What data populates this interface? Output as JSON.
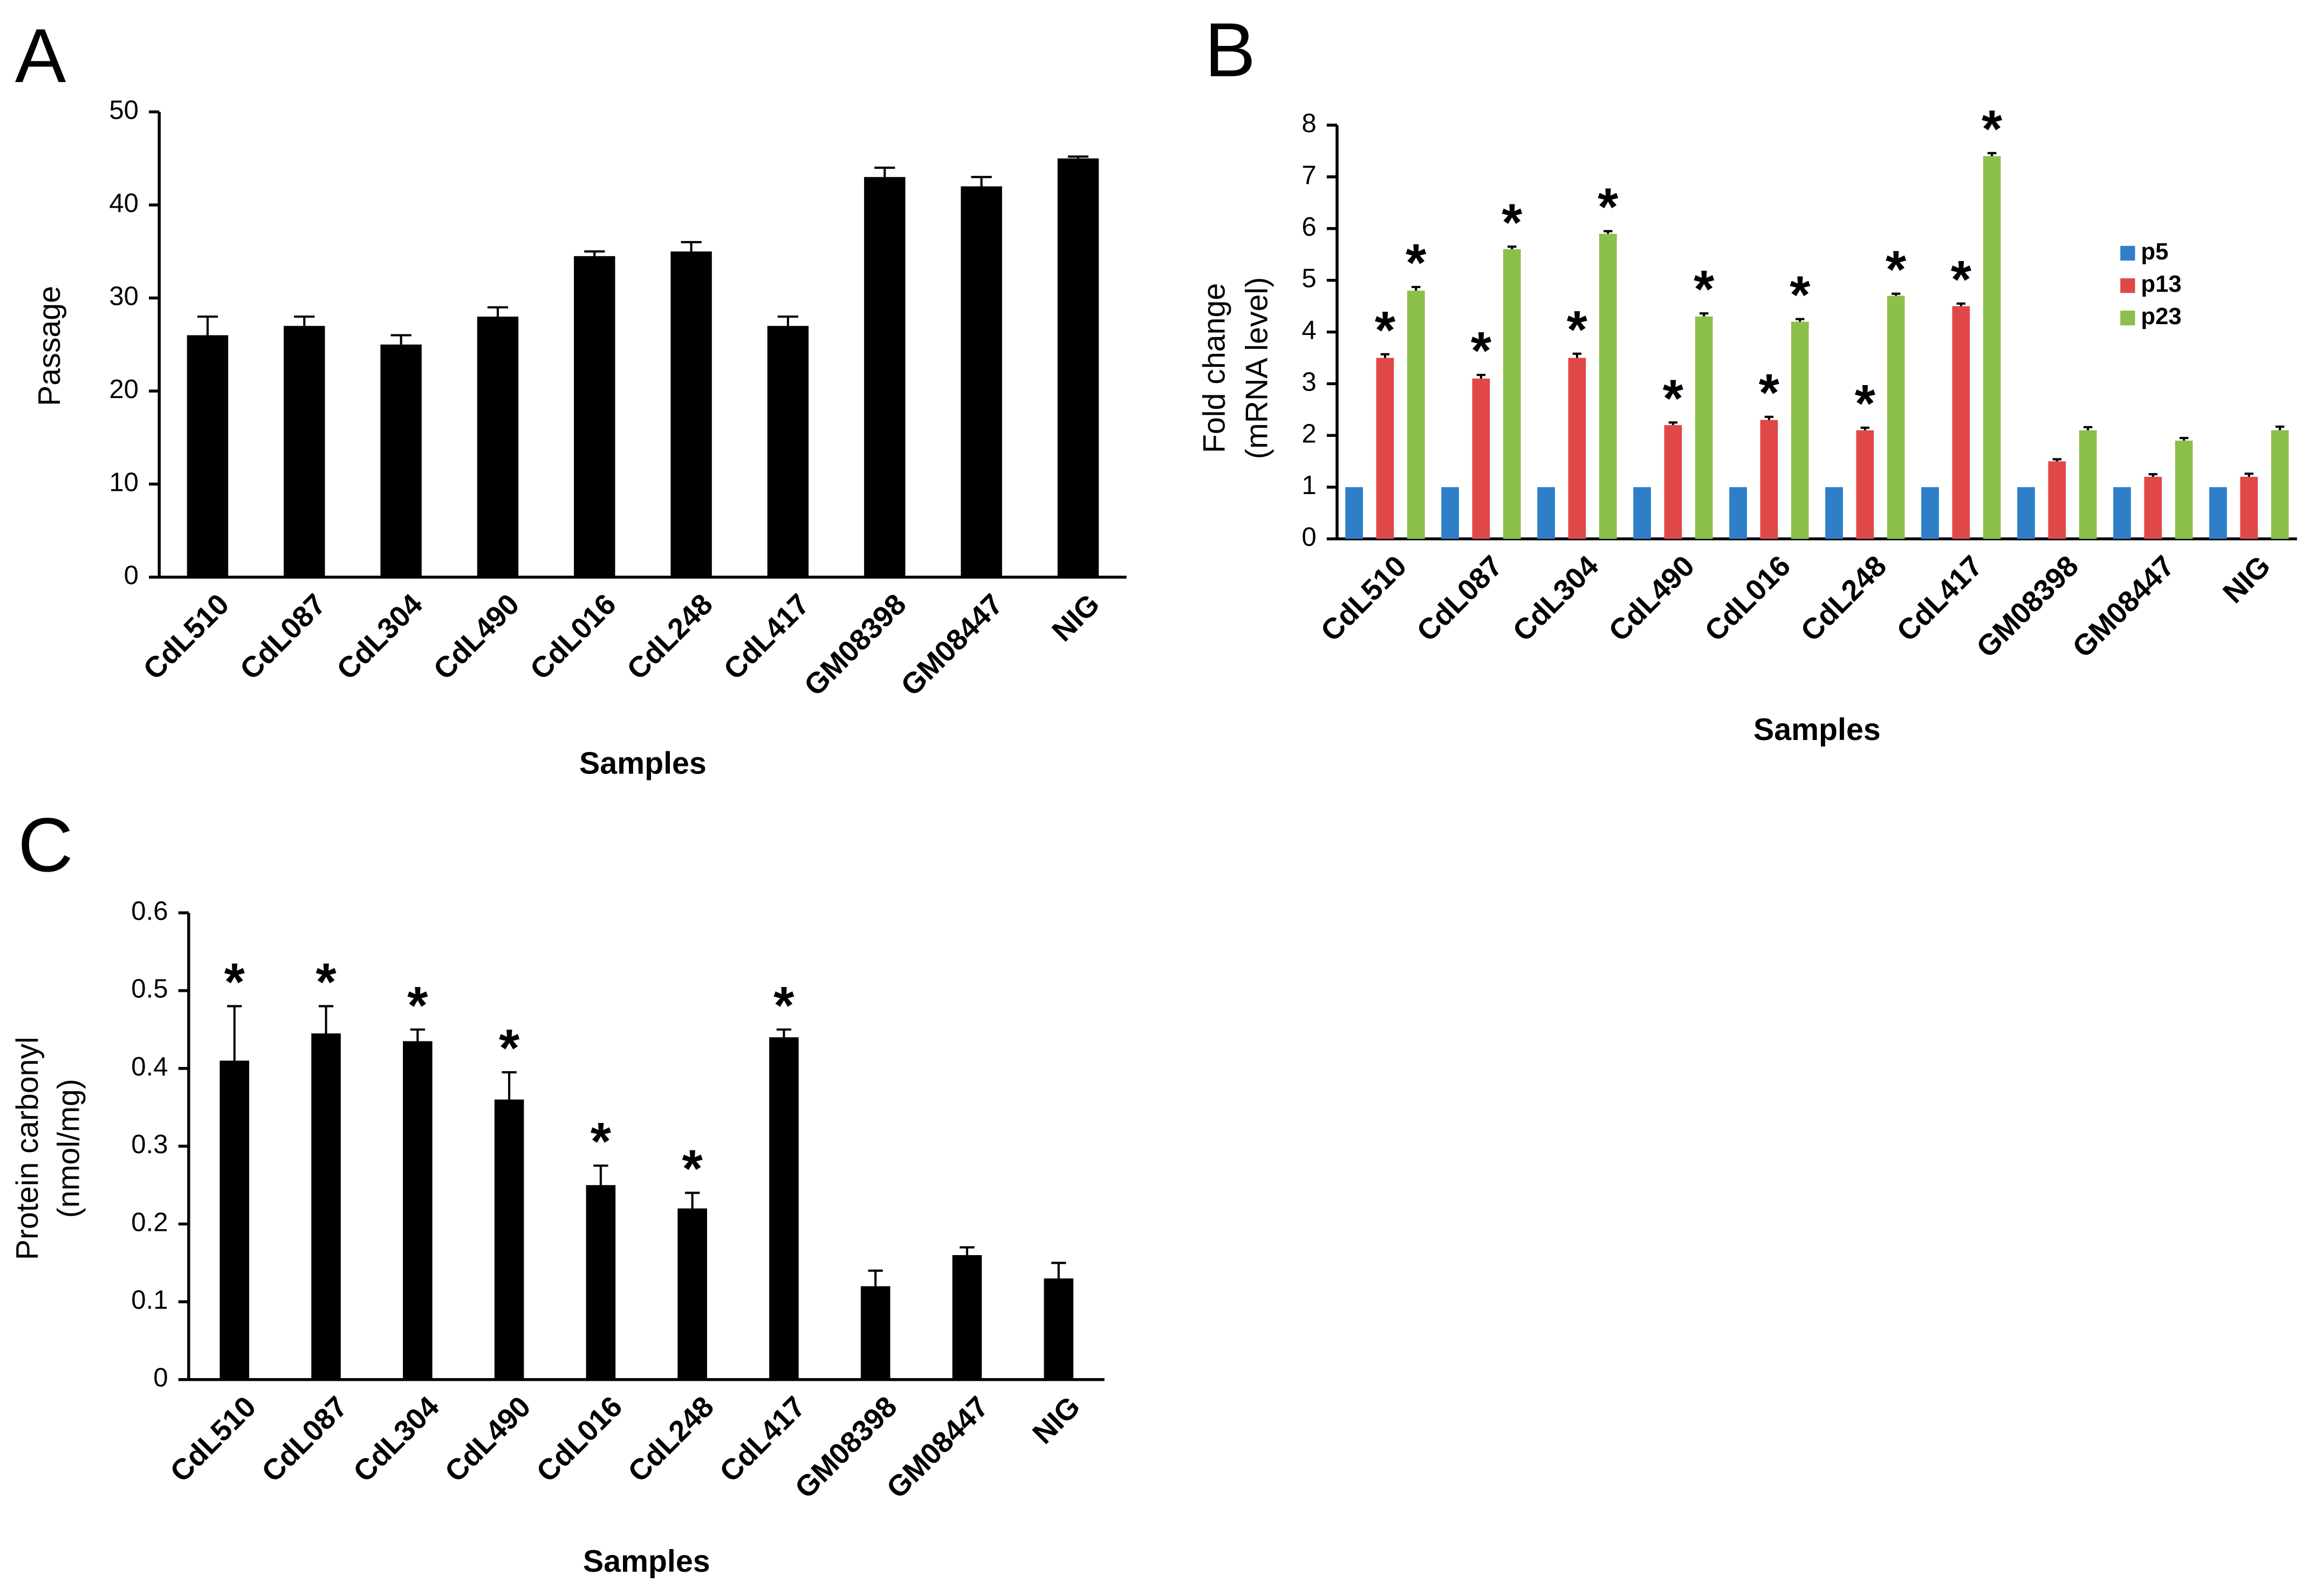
{
  "chart_data": [
    {
      "type": "bar",
      "panel": "A",
      "x_label": "Samples",
      "y_label": [
        "Passage"
      ],
      "categories": [
        "CdL510",
        "CdL087",
        "CdL304",
        "CdL490",
        "CdL016",
        "CdL248",
        "CdL417",
        "GM08398",
        "GM08447",
        "NIG"
      ],
      "values": [
        26,
        27,
        25,
        28,
        34.5,
        35,
        27,
        43,
        42,
        45
      ],
      "errors": [
        2,
        1,
        1,
        1,
        0.5,
        1,
        1,
        1,
        1,
        0.2
      ],
      "color": "#000000",
      "ylim": [
        0,
        50
      ],
      "yticks": [
        0,
        10,
        20,
        30,
        40,
        50
      ]
    },
    {
      "type": "bar",
      "panel": "B",
      "x_label": "Samples",
      "y_label": [
        "Fold change",
        "(mRNA level)"
      ],
      "categories": [
        "CdL510",
        "CdL087",
        "CdL304",
        "CdL490",
        "CdL016",
        "CdL248",
        "CdL417",
        "GM08398",
        "GM08447",
        "NIG"
      ],
      "series": [
        {
          "name": "p5",
          "color": "#2f7fc8",
          "values": [
            1,
            1,
            1,
            1,
            1,
            1,
            1,
            1,
            1,
            1
          ]
        },
        {
          "name": "p13",
          "color": "#e04848",
          "values": [
            3.5,
            3.1,
            3.5,
            2.2,
            2.3,
            2.1,
            4.5,
            1.5,
            1.2,
            1.2
          ],
          "errors": [
            0.07,
            0.07,
            0.08,
            0.05,
            0.06,
            0.05,
            0.05,
            0.04,
            0.05,
            0.06
          ],
          "markers": [
            "*",
            "*",
            "*",
            "*",
            "*",
            "*",
            "*",
            null,
            null,
            null
          ]
        },
        {
          "name": "p23",
          "color": "#8cc04a",
          "values": [
            4.8,
            5.6,
            5.9,
            4.3,
            4.2,
            4.7,
            7.4,
            2.1,
            1.9,
            2.1
          ],
          "errors": [
            0.07,
            0.05,
            0.05,
            0.06,
            0.05,
            0.04,
            0.06,
            0.06,
            0.05,
            0.07
          ],
          "markers": [
            "*",
            "*",
            "*",
            "*",
            "*",
            "*",
            "*",
            null,
            null,
            null
          ]
        }
      ],
      "legend": "right",
      "ylim": [
        0,
        8
      ],
      "yticks": [
        0,
        1,
        2,
        3,
        4,
        5,
        6,
        7,
        8
      ]
    },
    {
      "type": "bar",
      "panel": "C",
      "x_label": "Samples",
      "y_label": [
        "Protein carbonyl",
        "(nmol/mg)"
      ],
      "categories": [
        "CdL510",
        "CdL087",
        "CdL304",
        "CdL490",
        "CdL016",
        "CdL248",
        "CdL417",
        "GM08398",
        "GM08447",
        "NIG"
      ],
      "values": [
        0.41,
        0.445,
        0.435,
        0.36,
        0.25,
        0.22,
        0.44,
        0.12,
        0.16,
        0.13
      ],
      "errors": [
        0.07,
        0.035,
        0.015,
        0.035,
        0.025,
        0.02,
        0.01,
        0.02,
        0.01,
        0.02
      ],
      "markers": [
        "*",
        "*",
        "*",
        "*",
        "*",
        "*",
        "*",
        null,
        null,
        null
      ],
      "color": "#000000",
      "ylim": [
        0,
        0.6
      ],
      "yticks": [
        0,
        0.1,
        0.2,
        0.3,
        0.4,
        0.5,
        0.6
      ]
    }
  ]
}
